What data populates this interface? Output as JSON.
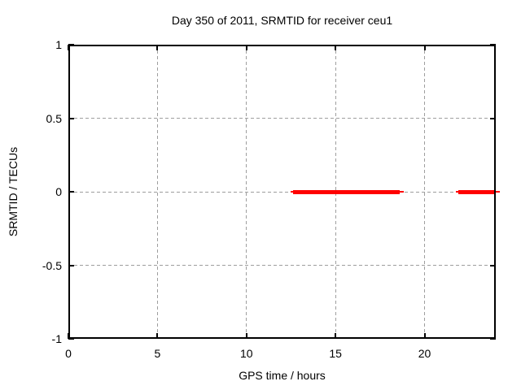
{
  "chart_data": {
    "type": "line",
    "title": "Day 350 of 2011, SRMTID for receiver ceu1",
    "xlabel": "GPS time / hours",
    "ylabel": "SRMTID / TECUs",
    "xlim": [
      0,
      24
    ],
    "ylim": [
      -1,
      1
    ],
    "x_ticks": [
      0,
      5,
      10,
      15,
      20
    ],
    "y_ticks": [
      -1,
      -0.5,
      0,
      0.5,
      1
    ],
    "grid": true,
    "grid_style": "dashed",
    "legend_position": "none",
    "series": [
      {
        "name": "SRMTID",
        "color": "#ff0000",
        "style": "thick horizontal line at y=0 with gaps",
        "segments": [
          {
            "x_start": 12.6,
            "x_end": 18.6,
            "y": 0
          },
          {
            "x_start": 21.9,
            "x_end": 24.0,
            "y": 0
          }
        ]
      }
    ],
    "colors": {
      "background": "#ffffff",
      "axis": "#000000",
      "grid": "#9e9e9e",
      "text": "#000000",
      "series": "#ff0000"
    }
  }
}
